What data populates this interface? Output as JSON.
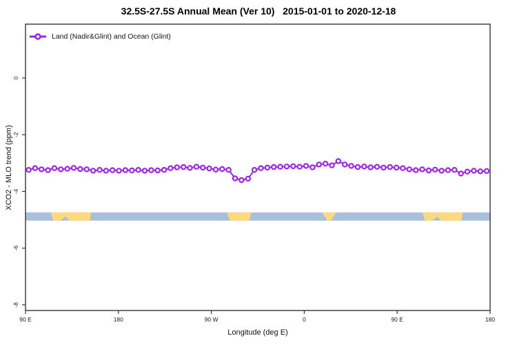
{
  "chart": {
    "title": "32.5S-27.5S Annual Mean (Ver 10)   2015-01-01 to 2020-12-18",
    "xlabel": "Longitude (deg E)",
    "ylabel": "XCO2 - MLO trend (ppm)",
    "legend_label": "Land (Nadir&Glint) and Ocean (Glint)"
  },
  "chart_data": {
    "type": "line",
    "title": "32.5S-27.5S Annual Mean (Ver 10)   2015-01-01 to 2020-12-18",
    "xlabel": "Longitude (deg E)",
    "ylabel": "XCO2 - MLO trend (ppm)",
    "legend": [
      "Land (Nadir&Glint) and Ocean (Glint)"
    ],
    "series_color": "#A020F0",
    "marker": "open-circle",
    "grid": false,
    "legend_position": "top-left-inside",
    "xlim": [
      90,
      540
    ],
    "ylim": [
      -8.2,
      1.9
    ],
    "x_ticks": {
      "values": [
        90,
        180,
        270,
        360,
        450,
        540
      ],
      "labels": [
        "90 E",
        "180",
        "90 W",
        "0",
        "90 E",
        "180"
      ]
    },
    "y_ticks": {
      "values": [
        0,
        -2,
        -4,
        -6,
        -8
      ],
      "labels": [
        "0",
        "-2",
        "-4",
        "-6",
        "-8"
      ]
    },
    "x": [
      93,
      99.25,
      105.5,
      111.75,
      118,
      124.25,
      130.5,
      136.75,
      143,
      149.25,
      155.5,
      161.75,
      168,
      174.25,
      180.5,
      186.75,
      193,
      199.25,
      205.5,
      211.75,
      218,
      224.25,
      230.5,
      236.75,
      243,
      249.25,
      255.5,
      261.75,
      268,
      274.25,
      280.5,
      286.75,
      293,
      299.25,
      305.5,
      311.75,
      318,
      324.25,
      330.5,
      336.75,
      343,
      349.25,
      355.5,
      361.75,
      368,
      374.25,
      380.5,
      386.75,
      393,
      399.25,
      405.5,
      411.75,
      418,
      424.25,
      430.5,
      436.75,
      443,
      449.25,
      455.5,
      461.75,
      468,
      474.25,
      480.5,
      486.75,
      493,
      499.25,
      505.5,
      511.75,
      518,
      524.25,
      530.5,
      536.75
    ],
    "y": [
      -3.24,
      -3.18,
      -3.22,
      -3.25,
      -3.18,
      -3.22,
      -3.2,
      -3.17,
      -3.21,
      -3.22,
      -3.27,
      -3.24,
      -3.27,
      -3.25,
      -3.27,
      -3.25,
      -3.26,
      -3.24,
      -3.27,
      -3.25,
      -3.26,
      -3.24,
      -3.18,
      -3.15,
      -3.14,
      -3.17,
      -3.13,
      -3.16,
      -3.19,
      -3.23,
      -3.21,
      -3.24,
      -3.54,
      -3.6,
      -3.55,
      -3.24,
      -3.18,
      -3.16,
      -3.14,
      -3.13,
      -3.12,
      -3.11,
      -3.13,
      -3.1,
      -3.15,
      -3.05,
      -3.02,
      -3.08,
      -2.93,
      -3.05,
      -3.1,
      -3.14,
      -3.12,
      -3.15,
      -3.13,
      -3.16,
      -3.14,
      -3.16,
      -3.18,
      -3.22,
      -3.25,
      -3.22,
      -3.26,
      -3.23,
      -3.27,
      -3.25,
      -3.24,
      -3.37,
      -3.3,
      -3.27,
      -3.29,
      -3.28
    ],
    "land_ocean_band": {
      "description": "ocean=blue strip, land=yellow patches, latitude band 32.5S-27.5S",
      "ocean_color": "#A9C0DB",
      "land_color": "#FFD97E",
      "top_value": -4.74,
      "bottom_value": -5.03,
      "land_polygons": [
        [
          [
            114.5,
            0
          ],
          [
            153.5,
            0
          ],
          [
            152.3,
            1
          ],
          [
            133,
            1
          ],
          [
            128.5,
            0.5
          ],
          [
            124,
            1
          ],
          [
            117,
            1
          ]
        ],
        [
          [
            285,
            0
          ],
          [
            309,
            0
          ],
          [
            306.5,
            1
          ],
          [
            288,
            1
          ]
        ],
        [
          [
            377,
            0
          ],
          [
            391,
            0
          ],
          [
            385.5,
            1
          ],
          [
            382.5,
            1
          ]
        ],
        [
          [
            474.5,
            0
          ],
          [
            513.5,
            0
          ],
          [
            512.3,
            1
          ],
          [
            493,
            1
          ],
          [
            488.5,
            0.5
          ],
          [
            484,
            1
          ],
          [
            477,
            1
          ]
        ]
      ]
    },
    "axis_color": "#333333",
    "tick_label_color": "#1a1a1a"
  }
}
